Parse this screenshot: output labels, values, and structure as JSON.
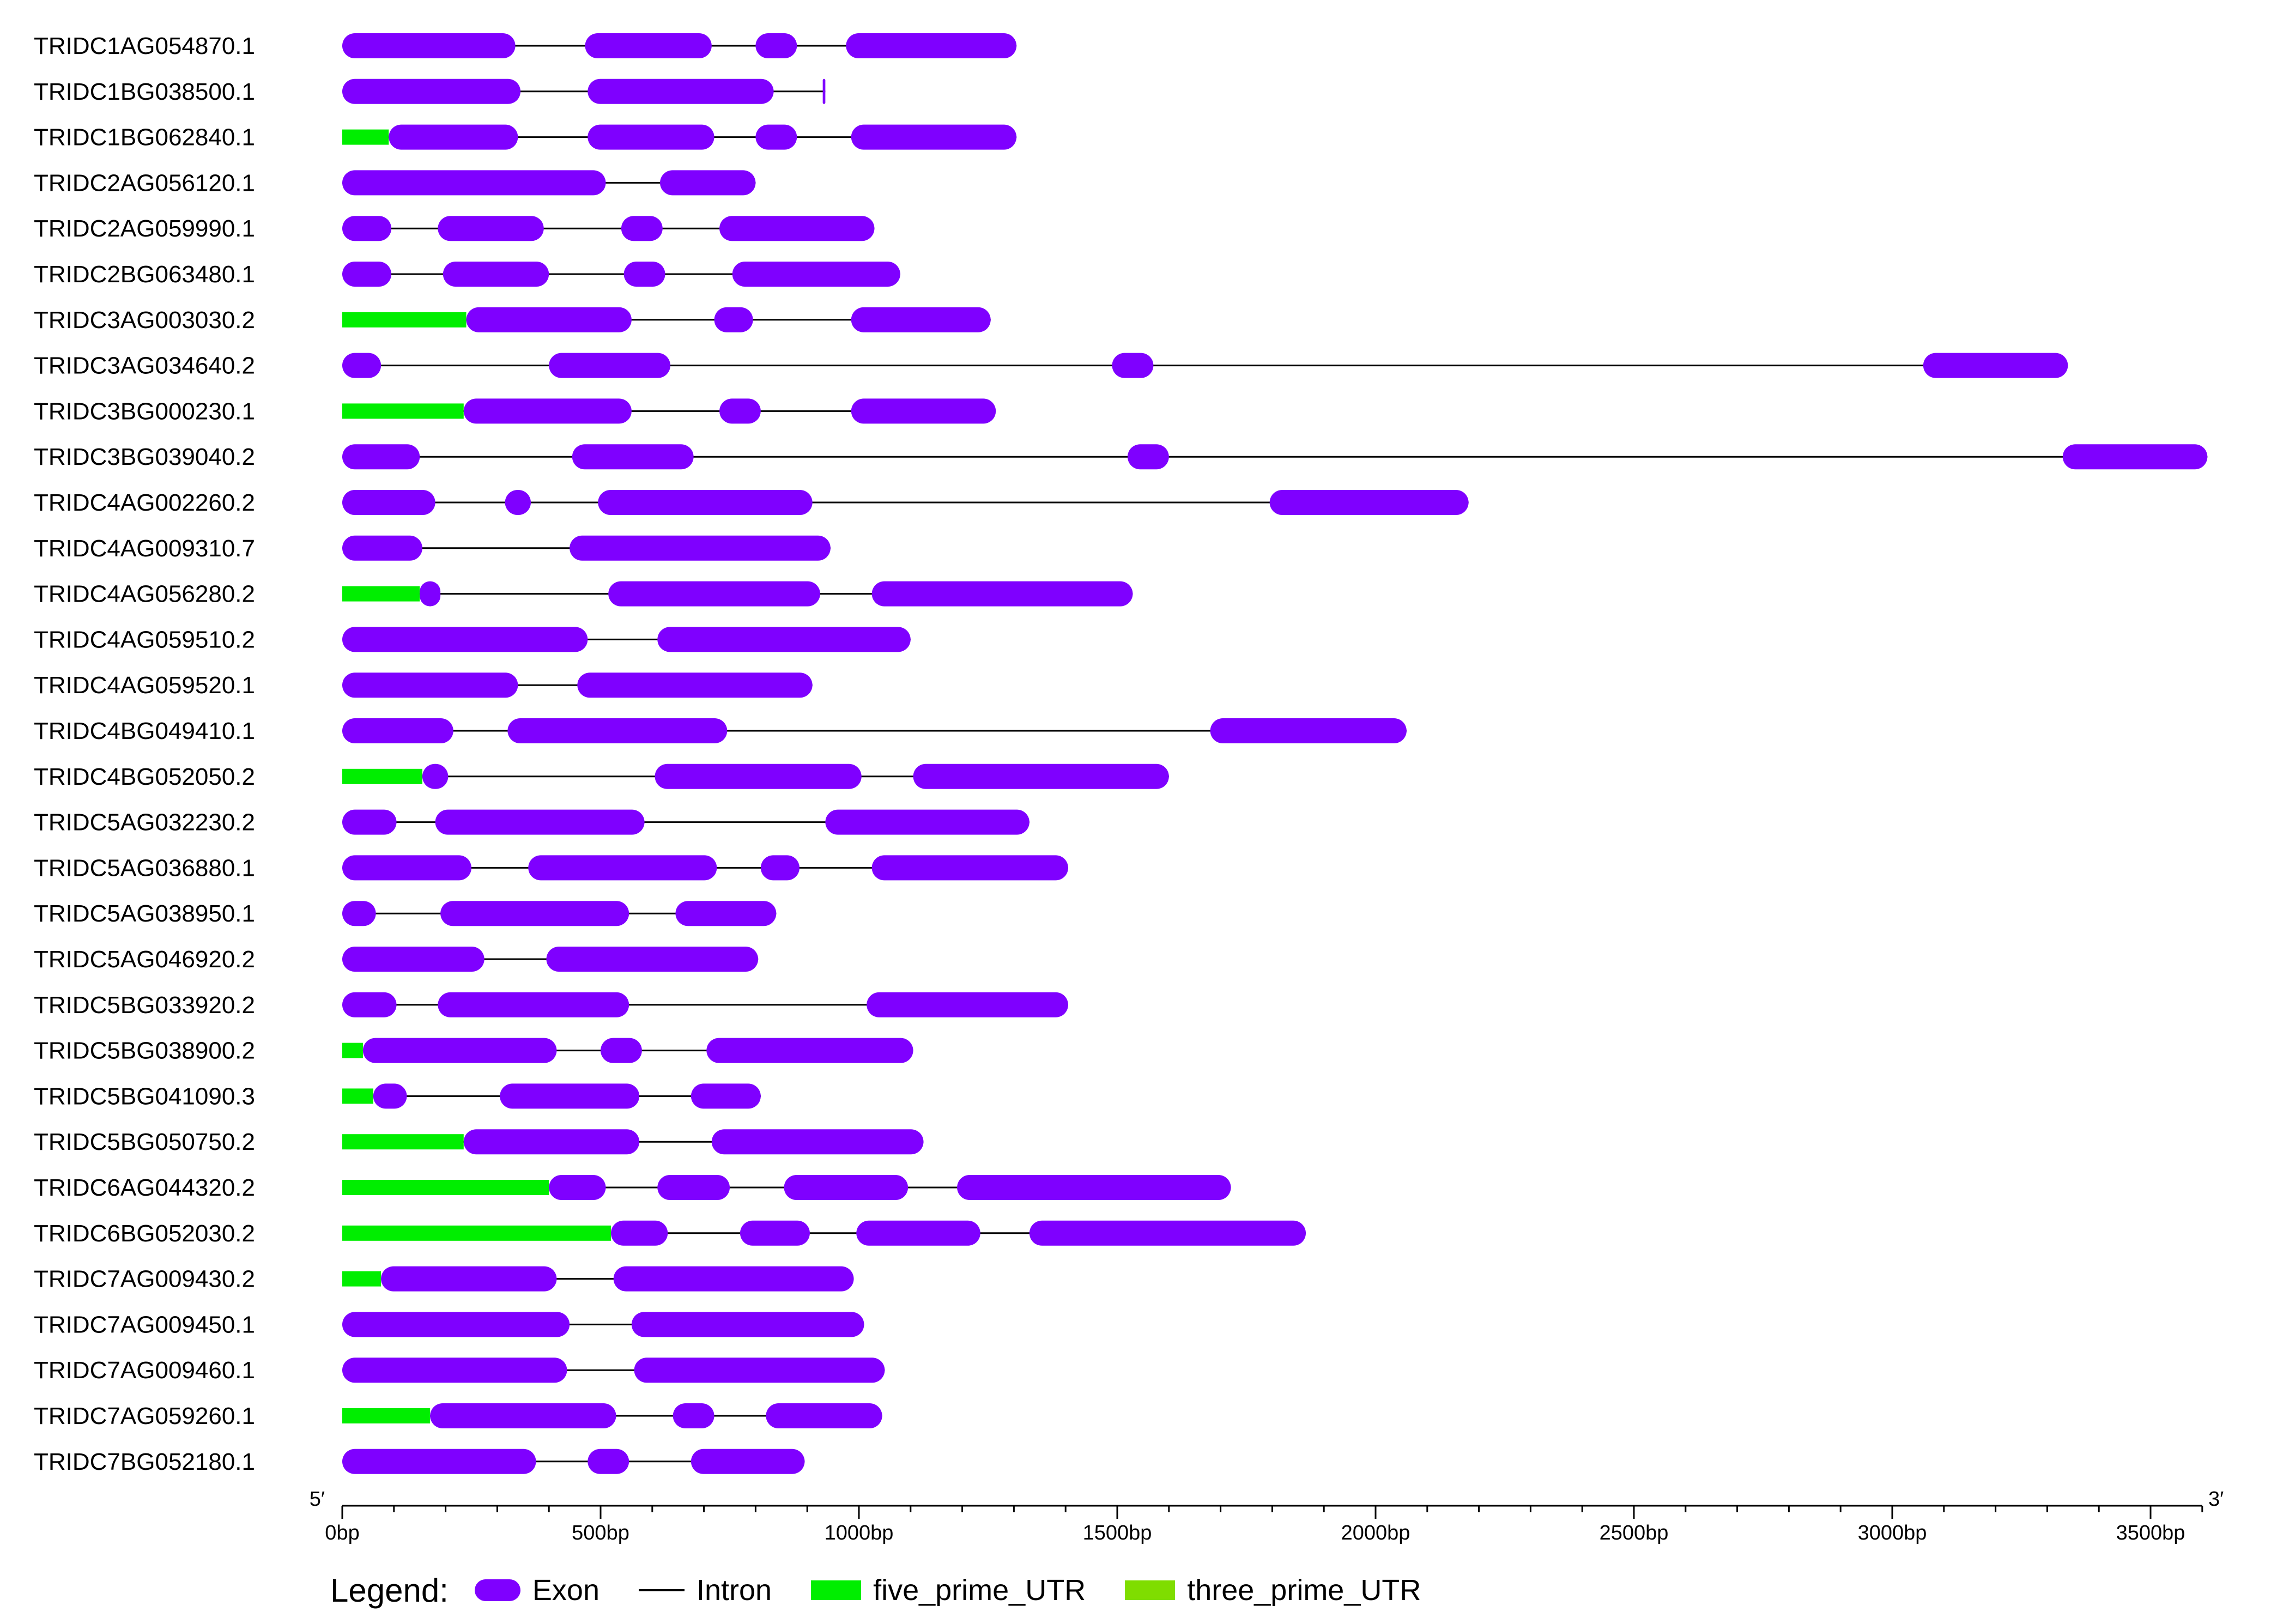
{
  "legend": {
    "title": "Legend:",
    "items": [
      {
        "label": "Exon",
        "kind": "exon"
      },
      {
        "label": "Intron",
        "kind": "intron"
      },
      {
        "label": "five_prime_UTR",
        "kind": "five_utr"
      },
      {
        "label": "three_prime_UTR",
        "kind": "three_utr"
      }
    ]
  },
  "colors": {
    "exon": "#7f00ff",
    "intron": "#000000",
    "five_utr": "#00ee00",
    "three_utr": "#7fdd00"
  },
  "axis": {
    "min_bp": 0,
    "max_bp": 3600,
    "ticks": [
      {
        "value": 0,
        "label": "0bp"
      },
      {
        "value": 500,
        "label": "500bp"
      },
      {
        "value": 1000,
        "label": "1000bp"
      },
      {
        "value": 1500,
        "label": "1500bp"
      },
      {
        "value": 2000,
        "label": "2000bp"
      },
      {
        "value": 2500,
        "label": "2500bp"
      },
      {
        "value": 3000,
        "label": "3000bp"
      },
      {
        "value": 3500,
        "label": "3500bp"
      }
    ],
    "left_end_label": "5′",
    "right_end_label": "3′"
  },
  "genes": [
    {
      "id": "TRIDC1AG054870.1",
      "exons": [
        [
          0,
          335
        ],
        [
          470,
          715
        ],
        [
          800,
          880
        ],
        [
          975,
          1305
        ]
      ],
      "utr5": null
    },
    {
      "id": "TRIDC1BG038500.1",
      "exons": [
        [
          0,
          345
        ],
        [
          475,
          835
        ],
        [
          930,
          935
        ]
      ],
      "utr5": null
    },
    {
      "id": "TRIDC1BG062840.1",
      "exons": [
        [
          90,
          340
        ],
        [
          475,
          720
        ],
        [
          800,
          880
        ],
        [
          985,
          1305
        ]
      ],
      "utr5": [
        0,
        90
      ]
    },
    {
      "id": "TRIDC2AG056120.1",
      "exons": [
        [
          0,
          510
        ],
        [
          615,
          800
        ]
      ],
      "utr5": null
    },
    {
      "id": "TRIDC2AG059990.1",
      "exons": [
        [
          0,
          95
        ],
        [
          185,
          390
        ],
        [
          540,
          620
        ],
        [
          730,
          1030
        ]
      ],
      "utr5": null
    },
    {
      "id": "TRIDC2BG063480.1",
      "exons": [
        [
          0,
          95
        ],
        [
          195,
          400
        ],
        [
          545,
          625
        ],
        [
          755,
          1080
        ]
      ],
      "utr5": null
    },
    {
      "id": "TRIDC3AG003030.2",
      "exons": [
        [
          240,
          560
        ],
        [
          720,
          795
        ],
        [
          985,
          1255
        ]
      ],
      "utr5": [
        0,
        240
      ]
    },
    {
      "id": "TRIDC3AG034640.2",
      "exons": [
        [
          0,
          75
        ],
        [
          400,
          635
        ],
        [
          1490,
          1570
        ],
        [
          3060,
          3340
        ]
      ],
      "utr5": null
    },
    {
      "id": "TRIDC3BG000230.1",
      "exons": [
        [
          235,
          560
        ],
        [
          730,
          810
        ],
        [
          985,
          1265
        ]
      ],
      "utr5": [
        0,
        235
      ]
    },
    {
      "id": "TRIDC3BG039040.2",
      "exons": [
        [
          0,
          150
        ],
        [
          445,
          680
        ],
        [
          1520,
          1600
        ],
        [
          3330,
          3610
        ]
      ],
      "utr5": null
    },
    {
      "id": "TRIDC4AG002260.2",
      "exons": [
        [
          0,
          180
        ],
        [
          315,
          365
        ],
        [
          495,
          910
        ],
        [
          1795,
          2180
        ]
      ],
      "utr5": null
    },
    {
      "id": "TRIDC4AG009310.7",
      "exons": [
        [
          0,
          155
        ],
        [
          440,
          945
        ]
      ],
      "utr5": null
    },
    {
      "id": "TRIDC4AG056280.2",
      "exons": [
        [
          150,
          190
        ],
        [
          515,
          925
        ],
        [
          1025,
          1530
        ]
      ],
      "utr5": [
        0,
        150
      ]
    },
    {
      "id": "TRIDC4AG059510.2",
      "exons": [
        [
          0,
          475
        ],
        [
          610,
          1100
        ]
      ],
      "utr5": null
    },
    {
      "id": "TRIDC4AG059520.1",
      "exons": [
        [
          0,
          340
        ],
        [
          455,
          910
        ]
      ],
      "utr5": null
    },
    {
      "id": "TRIDC4BG049410.1",
      "exons": [
        [
          0,
          215
        ],
        [
          320,
          745
        ],
        [
          1680,
          2060
        ]
      ],
      "utr5": null
    },
    {
      "id": "TRIDC4BG052050.2",
      "exons": [
        [
          155,
          205
        ],
        [
          605,
          1005
        ],
        [
          1105,
          1600
        ]
      ],
      "utr5": [
        0,
        155
      ]
    },
    {
      "id": "TRIDC5AG032230.2",
      "exons": [
        [
          0,
          105
        ],
        [
          180,
          585
        ],
        [
          935,
          1330
        ]
      ],
      "utr5": null
    },
    {
      "id": "TRIDC5AG036880.1",
      "exons": [
        [
          0,
          250
        ],
        [
          360,
          725
        ],
        [
          810,
          885
        ],
        [
          1025,
          1405
        ]
      ],
      "utr5": null
    },
    {
      "id": "TRIDC5AG038950.1",
      "exons": [
        [
          0,
          65
        ],
        [
          190,
          555
        ],
        [
          645,
          840
        ]
      ],
      "utr5": null
    },
    {
      "id": "TRIDC5AG046920.2",
      "exons": [
        [
          0,
          275
        ],
        [
          395,
          805
        ]
      ],
      "utr5": null
    },
    {
      "id": "TRIDC5BG033920.2",
      "exons": [
        [
          0,
          105
        ],
        [
          185,
          555
        ],
        [
          1015,
          1405
        ]
      ],
      "utr5": null
    },
    {
      "id": "TRIDC5BG038900.2",
      "exons": [
        [
          40,
          415
        ],
        [
          500,
          580
        ],
        [
          705,
          1105
        ]
      ],
      "utr5": [
        0,
        40
      ]
    },
    {
      "id": "TRIDC5BG041090.3",
      "exons": [
        [
          60,
          125
        ],
        [
          305,
          575
        ],
        [
          675,
          810
        ]
      ],
      "utr5": [
        0,
        60
      ]
    },
    {
      "id": "TRIDC5BG050750.2",
      "exons": [
        [
          235,
          575
        ],
        [
          715,
          1125
        ]
      ],
      "utr5": [
        0,
        235
      ]
    },
    {
      "id": "TRIDC6AG044320.2",
      "exons": [
        [
          400,
          510
        ],
        [
          610,
          750
        ],
        [
          855,
          1095
        ],
        [
          1190,
          1720
        ]
      ],
      "utr5": [
        0,
        400
      ]
    },
    {
      "id": "TRIDC6BG052030.2",
      "exons": [
        [
          520,
          630
        ],
        [
          770,
          905
        ],
        [
          995,
          1235
        ],
        [
          1330,
          1865
        ]
      ],
      "utr5": [
        0,
        520
      ]
    },
    {
      "id": "TRIDC7AG009430.2",
      "exons": [
        [
          75,
          415
        ],
        [
          525,
          990
        ]
      ],
      "utr5": [
        0,
        75
      ]
    },
    {
      "id": "TRIDC7AG009450.1",
      "exons": [
        [
          0,
          440
        ],
        [
          560,
          1010
        ]
      ],
      "utr5": null
    },
    {
      "id": "TRIDC7AG009460.1",
      "exons": [
        [
          0,
          435
        ],
        [
          565,
          1050
        ]
      ],
      "utr5": null
    },
    {
      "id": "TRIDC7AG059260.1",
      "exons": [
        [
          170,
          530
        ],
        [
          640,
          720
        ],
        [
          820,
          1045
        ]
      ],
      "utr5": [
        0,
        170
      ]
    },
    {
      "id": "TRIDC7BG052180.1",
      "exons": [
        [
          0,
          375
        ],
        [
          475,
          555
        ],
        [
          675,
          895
        ]
      ],
      "utr5": null
    }
  ]
}
